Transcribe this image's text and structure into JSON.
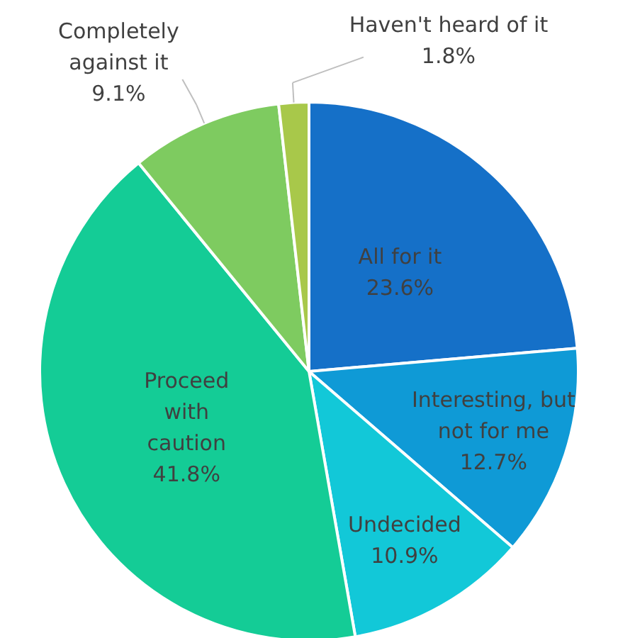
{
  "chart_data": {
    "type": "pie",
    "categories": [
      "All for it",
      "Interesting, but not for me",
      "Undecided",
      "Proceed with caution",
      "Completely against it",
      "Haven't heard of it"
    ],
    "values": [
      23.6,
      12.7,
      10.9,
      41.8,
      9.1,
      1.8
    ],
    "value_labels": [
      "23.6%",
      "12.7%",
      "10.9%",
      "41.8%",
      "9.1%",
      "1.8%"
    ],
    "colors": [
      "#1570c8",
      "#0f9ad6",
      "#12c8d8",
      "#14cc96",
      "#7ecb60",
      "#a8c84a"
    ]
  }
}
